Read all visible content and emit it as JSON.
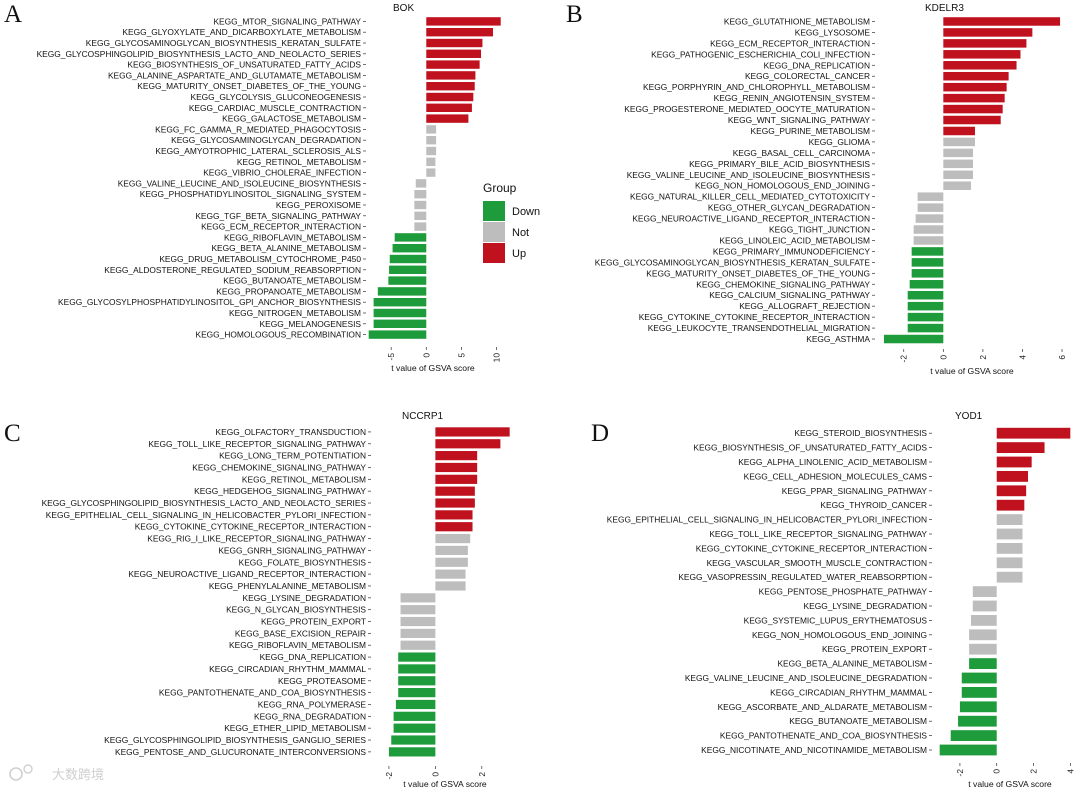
{
  "colors": {
    "Down": "#1e9b3a",
    "Not": "#bdbdbd",
    "Up": "#c0111e"
  },
  "legend": {
    "title": "Group",
    "items": [
      "Down",
      "Not",
      "Up"
    ]
  },
  "watermark": "大数跨境",
  "chart_data": [
    {
      "type": "bar",
      "orientation": "horizontal",
      "panel": "A",
      "title": "BOK",
      "xlabel": "t value of GSVA score",
      "xlim": [
        -8.3,
        10.5
      ],
      "ticks": [
        -5,
        0,
        5,
        10
      ],
      "categories": [
        "KEGG_MTOR_SIGNALING_PATHWAY",
        "KEGG_GLYOXYLATE_AND_DICARBOXYLATE_METABOLISM",
        "KEGG_GLYCOSAMINOGLYCAN_BIOSYNTHESIS_KERATAN_SULFATE",
        "KEGG_GLYCOSPHINGOLIPID_BIOSYNTHESIS_LACTO_AND_NEOLACTO_SERIES",
        "KEGG_BIOSYNTHESIS_OF_UNSATURATED_FATTY_ACIDS",
        "KEGG_ALANINE_ASPARTATE_AND_GLUTAMATE_METABOLISM",
        "KEGG_MATURITY_ONSET_DIABETES_OF_THE_YOUNG",
        "KEGG_GLYCOLYSIS_GLUCONEOGENESIS",
        "KEGG_CARDIAC_MUSCLE_CONTRACTION",
        "KEGG_GALACTOSE_METABOLISM",
        "KEGG_FC_GAMMA_R_MEDIATED_PHAGOCYTOSIS",
        "KEGG_GLYCOSAMINOGLYCAN_DEGRADATION",
        "KEGG_AMYOTROPHIC_LATERAL_SCLEROSIS_ALS",
        "KEGG_RETINOL_METABOLISM",
        "KEGG_VIBRIO_CHOLERAE_INFECTION",
        "KEGG_VALINE_LEUCINE_AND_ISOLEUCINE_BIOSYNTHESIS",
        "KEGG_PHOSPHATIDYLINOSITOL_SIGNALING_SYSTEM",
        "KEGG_PEROXISOME",
        "KEGG_TGF_BETA_SIGNALING_PATHWAY",
        "KEGG_ECM_RECEPTOR_INTERACTION",
        "KEGG_RIBOFLAVIN_METABOLISM",
        "KEGG_BETA_ALANINE_METABOLISM",
        "KEGG_DRUG_METABOLISM_CYTOCHROME_P450",
        "KEGG_ALDOSTERONE_REGULATED_SODIUM_REABSORPTION",
        "KEGG_BUTANOATE_METABOLISM",
        "KEGG_PROPANOATE_METABOLISM",
        "KEGG_GLYCOSYLPHOSPHATIDYLINOSITOL_GPI_ANCHOR_BIOSYNTHESIS",
        "KEGG_NITROGEN_METABOLISM",
        "KEGG_MELANOGENESIS",
        "KEGG_HOMOLOGOUS_RECOMBINATION"
      ],
      "values": [
        10.6,
        9.5,
        8.0,
        7.8,
        7.6,
        7.0,
        6.9,
        6.7,
        6.5,
        6.0,
        1.4,
        1.4,
        1.4,
        1.3,
        1.3,
        -1.5,
        -1.7,
        -1.7,
        -1.7,
        -1.7,
        -4.5,
        -4.8,
        -5.2,
        -5.3,
        -5.4,
        -6.9,
        -7.5,
        -7.5,
        -7.5,
        -8.2
      ],
      "groups": [
        "Up",
        "Up",
        "Up",
        "Up",
        "Up",
        "Up",
        "Up",
        "Up",
        "Up",
        "Up",
        "Not",
        "Not",
        "Not",
        "Not",
        "Not",
        "Not",
        "Not",
        "Not",
        "Not",
        "Not",
        "Down",
        "Down",
        "Down",
        "Down",
        "Down",
        "Down",
        "Down",
        "Down",
        "Down",
        "Down"
      ]
    },
    {
      "type": "bar",
      "orientation": "horizontal",
      "panel": "B",
      "title": "KDELR3",
      "xlabel": "t value of GSVA score",
      "xlim": [
        -3.2,
        6.2
      ],
      "ticks": [
        -2,
        0,
        2,
        4,
        6
      ],
      "categories": [
        "KEGG_GLUTATHIONE_METABOLISM",
        "KEGG_LYSOSOME",
        "KEGG_ECM_RECEPTOR_INTERACTION",
        "KEGG_PATHOGENIC_ESCHERICHIA_COLI_INFECTION",
        "KEGG_DNA_REPLICATION",
        "KEGG_COLORECTAL_CANCER",
        "KEGG_PORPHYRIN_AND_CHLOROPHYLL_METABOLISM",
        "KEGG_RENIN_ANGIOTENSIN_SYSTEM",
        "KEGG_PROGESTERONE_MEDIATED_OOCYTE_MATURATION",
        "KEGG_WNT_SIGNALING_PATHWAY",
        "KEGG_PURINE_METABOLISM",
        "KEGG_GLIOMA",
        "KEGG_BASAL_CELL_CARCINOMA",
        "KEGG_PRIMARY_BILE_ACID_BIOSYNTHESIS",
        "KEGG_VALINE_LEUCINE_AND_ISOLEUCINE_BIOSYNTHESIS",
        "KEGG_NON_HOMOLOGOUS_END_JOINING",
        "KEGG_NATURAL_KILLER_CELL_MEDIATED_CYTOTOXICITY",
        "KEGG_OTHER_GLYCAN_DEGRADATION",
        "KEGG_NEUROACTIVE_LIGAND_RECEPTOR_INTERACTION",
        "KEGG_TIGHT_JUNCTION",
        "KEGG_LINOLEIC_ACID_METABOLISM",
        "KEGG_PRIMARY_IMMUNODEFICIENCY",
        "KEGG_GLYCOSAMINOGLYCAN_BIOSYNTHESIS_KERATAN_SULFATE",
        "KEGG_MATURITY_ONSET_DIABETES_OF_THE_YOUNG",
        "KEGG_CHEMOKINE_SIGNALING_PATHWAY",
        "KEGG_CALCIUM_SIGNALING_PATHWAY",
        "KEGG_ALLOGRAFT_REJECTION",
        "KEGG_CYTOKINE_CYTOKINE_RECEPTOR_INTERACTION",
        "KEGG_LEUKOCYTE_TRANSENDOTHELIAL_MIGRATION",
        "KEGG_ASTHMA"
      ],
      "values": [
        5.9,
        4.5,
        4.2,
        3.9,
        3.7,
        3.3,
        3.2,
        3.1,
        3.0,
        2.9,
        1.6,
        1.6,
        1.5,
        1.5,
        1.5,
        1.4,
        -1.3,
        -1.3,
        -1.4,
        -1.5,
        -1.5,
        -1.6,
        -1.6,
        -1.6,
        -1.7,
        -1.8,
        -1.8,
        -1.8,
        -1.8,
        -3.0
      ],
      "groups": [
        "Up",
        "Up",
        "Up",
        "Up",
        "Up",
        "Up",
        "Up",
        "Up",
        "Up",
        "Up",
        "Up",
        "Not",
        "Not",
        "Not",
        "Not",
        "Not",
        "Not",
        "Not",
        "Not",
        "Not",
        "Not",
        "Down",
        "Down",
        "Down",
        "Down",
        "Down",
        "Down",
        "Down",
        "Down",
        "Down"
      ]
    },
    {
      "type": "bar",
      "orientation": "horizontal",
      "panel": "C",
      "title": "NCCRP1",
      "xlabel": "t value of GSVA score",
      "xlim": [
        -2.6,
        3.3
      ],
      "ticks": [
        -2,
        0,
        2
      ],
      "categories": [
        "KEGG_OLFACTORY_TRANSDUCTION",
        "KEGG_TOLL_LIKE_RECEPTOR_SIGNALING_PATHWAY",
        "KEGG_LONG_TERM_POTENTIATION",
        "KEGG_CHEMOKINE_SIGNALING_PATHWAY",
        "KEGG_RETINOL_METABOLISM",
        "KEGG_HEDGEHOG_SIGNALING_PATHWAY",
        "KEGG_GLYCOSPHINGOLIPID_BIOSYNTHESIS_LACTO_AND_NEOLACTO_SERIES",
        "KEGG_EPITHELIAL_CELL_SIGNALING_IN_HELICOBACTER_PYLORI_INFECTION",
        "KEGG_CYTOKINE_CYTOKINE_RECEPTOR_INTERACTION",
        "KEGG_RIG_I_LIKE_RECEPTOR_SIGNALING_PATHWAY",
        "KEGG_GNRH_SIGNALING_PATHWAY",
        "KEGG_FOLATE_BIOSYNTHESIS",
        "KEGG_NEUROACTIVE_LIGAND_RECEPTOR_INTERACTION",
        "KEGG_PHENYLALANINE_METABOLISM",
        "KEGG_LYSINE_DEGRADATION",
        "KEGG_N_GLYCAN_BIOSYNTHESIS",
        "KEGG_PROTEIN_EXPORT",
        "KEGG_BASE_EXCISION_REPAIR",
        "KEGG_RIBOFLAVIN_METABOLISM",
        "KEGG_DNA_REPLICATION",
        "KEGG_CIRCADIAN_RHYTHM_MAMMAL",
        "KEGG_PROTEASOME",
        "KEGG_PANTOTHENATE_AND_COA_BIOSYNTHESIS",
        "KEGG_RNA_POLYMERASE",
        "KEGG_RNA_DEGRADATION",
        "KEGG_ETHER_LIPID_METABOLISM",
        "KEGG_GLYCOSPHINGOLIPID_BIOSYNTHESIS_GANGLIO_SERIES",
        "KEGG_PENTOSE_AND_GLUCURONATE_INTERCONVERSIONS"
      ],
      "values": [
        3.2,
        2.8,
        1.8,
        1.8,
        1.8,
        1.7,
        1.7,
        1.6,
        1.6,
        1.5,
        1.4,
        1.4,
        1.3,
        1.3,
        -1.5,
        -1.5,
        -1.5,
        -1.5,
        -1.5,
        -1.6,
        -1.6,
        -1.6,
        -1.6,
        -1.7,
        -1.8,
        -1.8,
        -1.9,
        -2.0
      ],
      "groups": [
        "Up",
        "Up",
        "Up",
        "Up",
        "Up",
        "Up",
        "Up",
        "Up",
        "Up",
        "Not",
        "Not",
        "Not",
        "Not",
        "Not",
        "Not",
        "Not",
        "Not",
        "Not",
        "Not",
        "Down",
        "Down",
        "Down",
        "Down",
        "Down",
        "Down",
        "Down",
        "Down",
        "Down"
      ]
    },
    {
      "type": "bar",
      "orientation": "horizontal",
      "panel": "D",
      "title": "YOD1",
      "xlabel": "t value of GSVA score",
      "xlim": [
        -3.3,
        4.2
      ],
      "ticks": [
        -2,
        0,
        2,
        4
      ],
      "categories": [
        "KEGG_STEROID_BIOSYNTHESIS",
        "KEGG_BIOSYNTHESIS_OF_UNSATURATED_FATTY_ACIDS",
        "KEGG_ALPHA_LINOLENIC_ACID_METABOLISM",
        "KEGG_CELL_ADHESION_MOLECULES_CAMS",
        "KEGG_PPAR_SIGNALING_PATHWAY",
        "KEGG_THYROID_CANCER",
        "KEGG_EPITHELIAL_CELL_SIGNALING_IN_HELICOBACTER_PYLORI_INFECTION",
        "KEGG_TOLL_LIKE_RECEPTOR_SIGNALING_PATHWAY",
        "KEGG_CYTOKINE_CYTOKINE_RECEPTOR_INTERACTION",
        "KEGG_VASCULAR_SMOOTH_MUSCLE_CONTRACTION",
        "KEGG_VASOPRESSIN_REGULATED_WATER_REABSORPTION",
        "KEGG_PENTOSE_PHOSPHATE_PATHWAY",
        "KEGG_LYSINE_DEGRADATION",
        "KEGG_SYSTEMIC_LUPUS_ERYTHEMATOSUS",
        "KEGG_NON_HOMOLOGOUS_END_JOINING",
        "KEGG_PROTEIN_EXPORT",
        "KEGG_BETA_ALANINE_METABOLISM",
        "KEGG_VALINE_LEUCINE_AND_ISOLEUCINE_DEGRADATION",
        "KEGG_CIRCADIAN_RHYTHM_MAMMAL",
        "KEGG_ASCORBATE_AND_ALDARATE_METABOLISM",
        "KEGG_BUTANOATE_METABOLISM",
        "KEGG_PANTOTHENATE_AND_COA_BIOSYNTHESIS",
        "KEGG_NICOTINATE_AND_NICOTINAMIDE_METABOLISM"
      ],
      "values": [
        4.0,
        2.6,
        1.9,
        1.7,
        1.6,
        1.5,
        1.4,
        1.4,
        1.4,
        1.4,
        1.4,
        -1.3,
        -1.3,
        -1.4,
        -1.5,
        -1.5,
        -1.5,
        -1.9,
        -1.9,
        -2.0,
        -2.1,
        -2.5,
        -3.1
      ],
      "groups": [
        "Up",
        "Up",
        "Up",
        "Up",
        "Up",
        "Up",
        "Not",
        "Not",
        "Not",
        "Not",
        "Not",
        "Not",
        "Not",
        "Not",
        "Not",
        "Not",
        "Down",
        "Down",
        "Down",
        "Down",
        "Down",
        "Down",
        "Down"
      ]
    }
  ]
}
